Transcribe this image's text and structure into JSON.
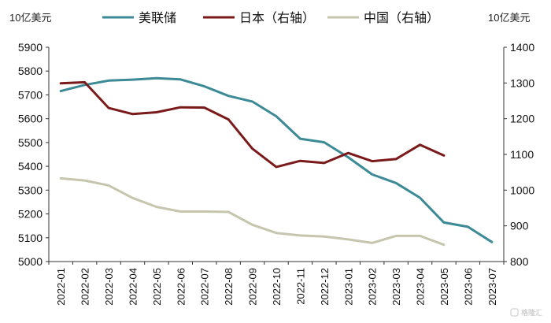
{
  "chart_data": {
    "type": "line",
    "units": {
      "left": "10亿美元",
      "right": "10亿美元"
    },
    "categories": [
      "2022-01",
      "2022-02",
      "2022-03",
      "2022-04",
      "2022-05",
      "2022-06",
      "2022-07",
      "2022-08",
      "2022-09",
      "2022-10",
      "2022-11",
      "2022-12",
      "2023-01",
      "2023-02",
      "2023-03",
      "2023-04",
      "2023-05",
      "2023-06",
      "2023-07"
    ],
    "y_left": {
      "min": 5000,
      "max": 5900,
      "ticks": [
        5000,
        5100,
        5200,
        5300,
        5400,
        5500,
        5600,
        5700,
        5800,
        5900
      ]
    },
    "y_right": {
      "min": 800,
      "max": 1400,
      "ticks": [
        800,
        900,
        1000,
        1100,
        1200,
        1300,
        1400
      ]
    },
    "grid": false,
    "legend_position": "top",
    "series": [
      {
        "name": "美联储",
        "axis": "left",
        "color": "#3b8a96",
        "values": [
          5716,
          5742,
          5760,
          5764,
          5770,
          5765,
          5736,
          5696,
          5672,
          5610,
          5516,
          5501,
          5438,
          5366,
          5330,
          5268,
          5164,
          5146,
          5082
        ]
      },
      {
        "name": "日本（右轴）",
        "axis": "right",
        "color": "#7a1a1a",
        "values": [
          1299,
          1302,
          1230,
          1213,
          1218,
          1232,
          1231,
          1198,
          1116,
          1065,
          1082,
          1076,
          1104,
          1081,
          1087,
          1127,
          1097,
          null,
          null
        ]
      },
      {
        "name": "中国（右轴）",
        "axis": "right",
        "color": "#c6c6ae",
        "values": [
          1033,
          1027,
          1013,
          978,
          953,
          940,
          940,
          939,
          903,
          880,
          873,
          870,
          862,
          852,
          872,
          872,
          847,
          null,
          null
        ]
      }
    ],
    "watermark": "格隆汇"
  }
}
